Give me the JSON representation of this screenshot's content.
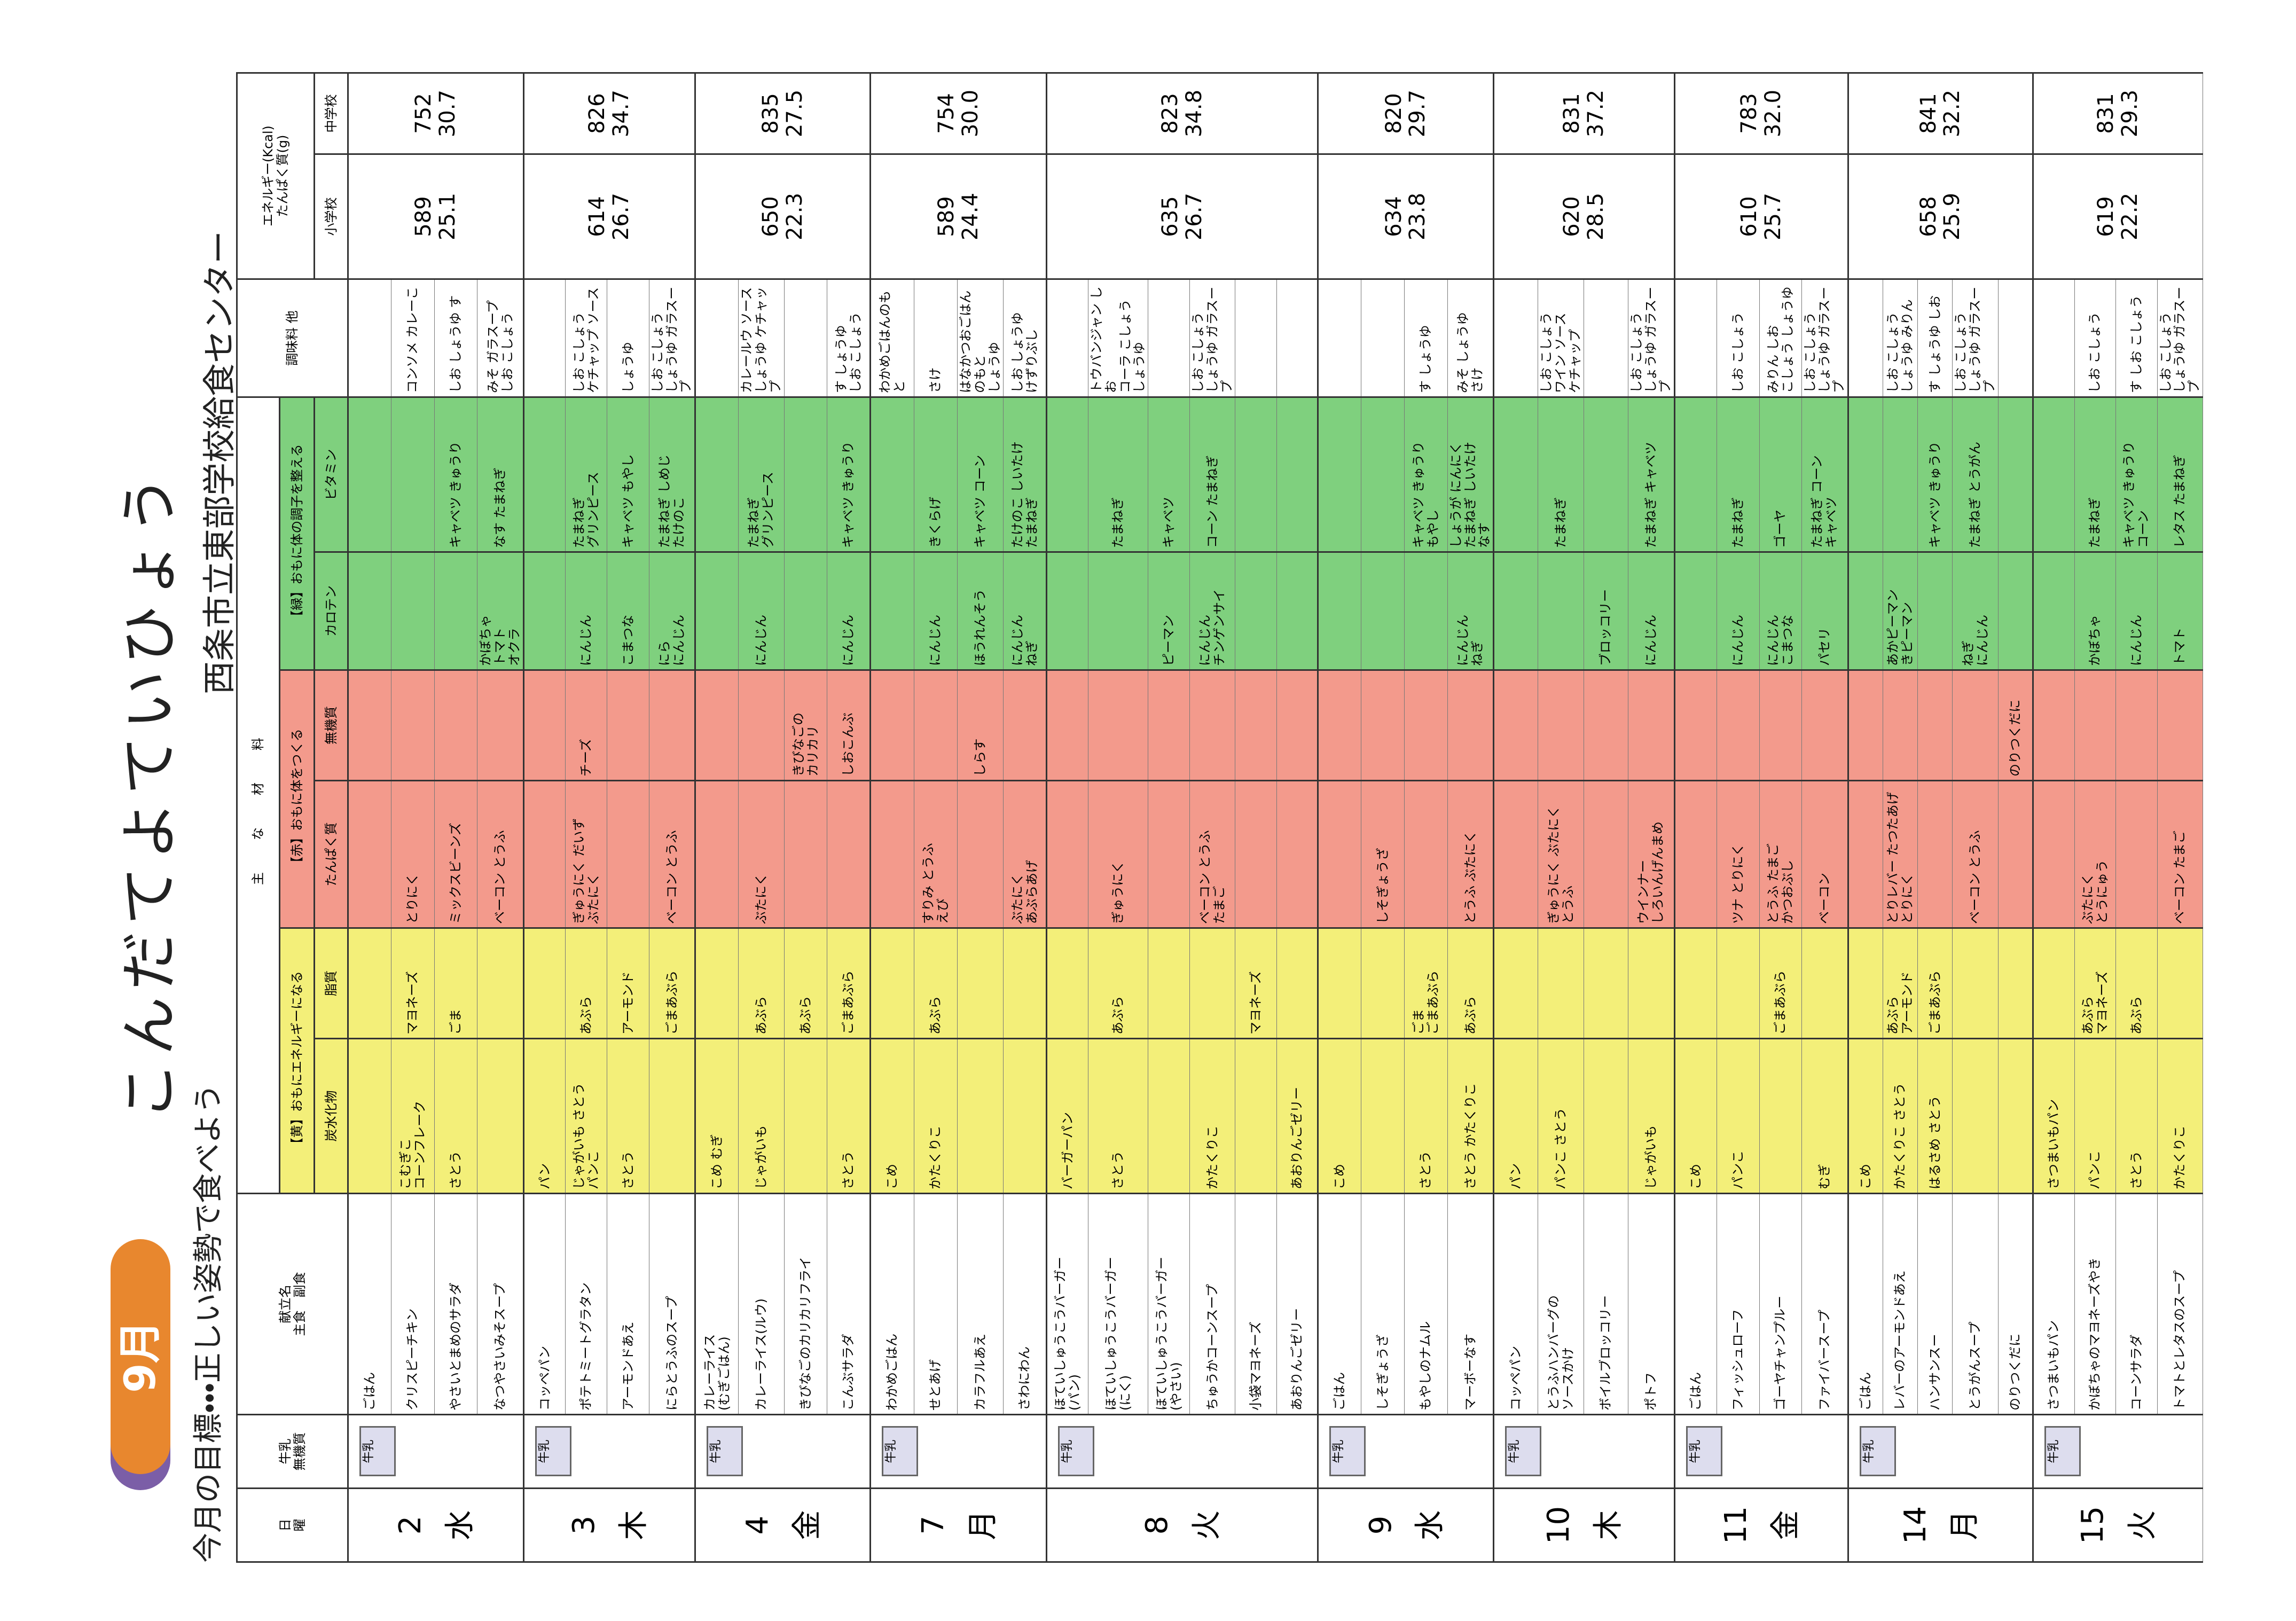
{
  "header": {
    "badge": "9月",
    "title": "こんだてよていひょう",
    "goal": "今月の目標・・・正しい姿勢で食べよう",
    "center": "西条市立東部学校給食センター",
    "date": "日",
    "weekday": "曜",
    "milk": "牛乳",
    "milk_sub": "無機質",
    "menu": "献立名",
    "main": "主食",
    "side": "副食",
    "ingredients": "主な材料",
    "yellow": "【黄】おもにエネルギーになる",
    "red": "【赤】おもに体をつくる",
    "green": "【緑】おもに体の調子を整える",
    "carb": "炭水化物",
    "fat": "脂質",
    "protein": "たんぱく質",
    "mineral": "無機質",
    "carotene": "カロテン",
    "vitamin": "ビタミン",
    "seasoning": "調味料 他",
    "energy": "エネルギー(Kcal)\nたんぱく質(g)",
    "elementary": "小学校",
    "middle": "中学校"
  },
  "milk_icon": "牛乳",
  "days": [
    {
      "date": "2",
      "weekday": "水",
      "elementary": "589\n25.1",
      "middle": "752\n30.7",
      "items": [
        {
          "dish": "ごはん"
        },
        {
          "dish": "クリスピーチキン",
          "carb": "こむぎこ\nコーンフレーク",
          "fat": "マヨネーズ",
          "protein": "とりにく",
          "seasoning": "コンソメ カレーこ"
        },
        {
          "dish": "やさいとまめのサラダ",
          "carb": "さとう",
          "fat": "ごま",
          "protein": "ミックスビーンズ",
          "vitamin": "キャベツ きゅうり",
          "seasoning": "しお しょうゆ す"
        },
        {
          "dish": "なつやさいみそスープ",
          "protein": "ベーコン とうふ",
          "carotene": "かぼちゃ\nトマト\nオクラ",
          "vitamin": "なす たまねぎ",
          "seasoning": "みそ ガラスープ\nしお こしょう"
        }
      ]
    },
    {
      "date": "3",
      "weekday": "木",
      "elementary": "614\n26.7",
      "middle": "826\n34.7",
      "items": [
        {
          "dish": "コッペパン",
          "carb": "パン"
        },
        {
          "dish": "ポテトミートグラタン",
          "carb": "じゃがいも さとう\nパンこ",
          "fat": "あぶら",
          "protein": "ぎゅうにく だいず\nぶたにく",
          "mineral": "チーズ",
          "carotene": "にんじん",
          "vitamin": "たまねぎ\nグリンピース",
          "seasoning": "しお こしょう\nケチャップ ソース"
        },
        {
          "dish": "アーモンドあえ",
          "carb": "さとう",
          "fat": "アーモンド",
          "carotene": "こまつな",
          "vitamin": "キャベツ もやし",
          "seasoning": "しょうゆ"
        },
        {
          "dish": "にらとうふのスープ",
          "fat": "ごまあぶら",
          "protein": "ベーコン とうふ",
          "carotene": "にら\nにんじん",
          "vitamin": "たまねぎ しめじ\nたけのこ",
          "seasoning": "しお こしょう\nしょうゆ ガラスープ"
        }
      ]
    },
    {
      "date": "4",
      "weekday": "金",
      "elementary": "650\n22.3",
      "middle": "835\n27.5",
      "items": [
        {
          "dish": "カレーライス\n(むぎごはん)",
          "carb": "こめ むぎ"
        },
        {
          "dish": "カレーライス(ルウ)",
          "carb": "じゃがいも",
          "fat": "あぶら",
          "protein": "ぶたにく",
          "carotene": "にんじん",
          "vitamin": "たまねぎ\nグリンピース",
          "seasoning": "カレールウ ソース\nしょうゆ ケチャップ"
        },
        {
          "dish": "きびなごのカリカリフライ",
          "fat": "あぶら",
          "mineral": "きびなごの\nカリカリ"
        },
        {
          "dish": "こんぶサラダ",
          "carb": "さとう",
          "fat": "ごまあぶら",
          "mineral": "しおこんぶ",
          "carotene": "にんじん",
          "vitamin": "キャベツ きゅうり",
          "seasoning": "す しょうゆ\nしお こしょう"
        }
      ]
    },
    {
      "date": "7",
      "weekday": "月",
      "elementary": "589\n24.4",
      "middle": "754\n30.0",
      "items": [
        {
          "dish": "わかめごはん",
          "carb": "こめ",
          "seasoning": "わかめごはんのもと"
        },
        {
          "dish": "せとあげ",
          "carb": "かたくりこ",
          "fat": "あぶら",
          "protein": "すりみ とうふ\nえび",
          "carotene": "にんじん",
          "vitamin": "きくらげ",
          "seasoning": "さけ"
        },
        {
          "dish": "カラフルあえ",
          "mineral": "しらす",
          "carotene": "ほうれんそう",
          "vitamin": "キャベツ コーン",
          "seasoning": "はなかつおごはんのもと\nしょうゆ"
        },
        {
          "dish": "さわにわん",
          "protein": "ぶたにく\nあぶらあげ",
          "carotene": "にんじん\nねぎ",
          "vitamin": "たけのこ しいたけ\nたまねぎ",
          "seasoning": "しお しょうゆ\nけずりぶし"
        }
      ]
    },
    {
      "date": "8",
      "weekday": "火",
      "elementary": "635\n26.7",
      "middle": "823\n34.8",
      "items": [
        {
          "dish": "ほていしゅうこうバーガー\n(パン)",
          "carb": "バーガーパン"
        },
        {
          "dish": "ほていしゅうこうバーガー\n(にく)",
          "carb": "さとう",
          "fat": "あぶら",
          "protein": "ぎゅうにく",
          "vitamin": "たまねぎ",
          "seasoning": "トウバンジャン しお\nコーラ こしょう\nしょうゆ"
        },
        {
          "dish": "ほていしゅうこうバーガー\n(やさい)",
          "carotene": "ピーマン",
          "vitamin": "キャベツ"
        },
        {
          "dish": "ちゅうかコーンスープ",
          "carb": "かたくりこ",
          "protein": "ベーコン とうふ\nたまご",
          "carotene": "にんじん\nチンゲンサイ",
          "vitamin": "コーン たまねぎ",
          "seasoning": "しお こしょう\nしょうゆ ガラスープ"
        },
        {
          "dish": "小袋マヨネーズ",
          "fat": "マヨネーズ"
        },
        {
          "dish": "あおりんごゼリー",
          "carb": "あおりんごゼリー"
        }
      ]
    },
    {
      "date": "9",
      "weekday": "水",
      "elementary": "634\n23.8",
      "middle": "820\n29.7",
      "items": [
        {
          "dish": "ごはん",
          "carb": "こめ"
        },
        {
          "dish": "しそぎょうざ",
          "protein": "しそぎょうざ"
        },
        {
          "dish": "もやしのナムル",
          "carb": "さとう",
          "fat": "ごま\nごまあぶら",
          "vitamin": "キャベツ きゅうり\nもやし",
          "seasoning": "す しょうゆ"
        },
        {
          "dish": "マーボーなす",
          "carb": "さとう かたくりこ",
          "fat": "あぶら",
          "protein": "とうふ ぶたにく",
          "carotene": "にんじん\nねぎ",
          "vitamin": "しょうが にんにく\nたまねぎ しいたけ\nなす",
          "seasoning": "みそ しょうゆ\nさけ"
        }
      ]
    },
    {
      "date": "10",
      "weekday": "木",
      "elementary": "620\n28.5",
      "middle": "831\n37.2",
      "items": [
        {
          "dish": "コッペパン",
          "carb": "パン"
        },
        {
          "dish": "とうふハンバーグの\nソースかけ",
          "carb": "パンこ さとう",
          "protein": "ぎゅうにく ぶたにく\nとうふ",
          "vitamin": "たまねぎ",
          "seasoning": "しお こしょう\nワイン ソース\nケチャップ"
        },
        {
          "dish": "ボイルブロッコリー",
          "carotene": "ブロッコリー"
        },
        {
          "dish": "ポトフ",
          "carb": "じゃがいも",
          "protein": "ウインナー\nしろいんげんまめ",
          "carotene": "にんじん",
          "vitamin": "たまねぎ キャベツ",
          "seasoning": "しお こしょう\nしょうゆ ガラスープ"
        }
      ]
    },
    {
      "date": "11",
      "weekday": "金",
      "elementary": "610\n25.7",
      "middle": "783\n32.0",
      "items": [
        {
          "dish": "ごはん",
          "carb": "こめ"
        },
        {
          "dish": "フィッシュローフ",
          "carb": "パンこ",
          "protein": "ツナ とりにく",
          "carotene": "にんじん",
          "vitamin": "たまねぎ",
          "seasoning": "しお こしょう"
        },
        {
          "dish": "ゴーヤチャンプルー",
          "fat": "ごまあぶら",
          "protein": "とうふ たまご\nかつおぶし",
          "carotene": "にんじん\nこまつな",
          "vitamin": "ゴーヤ",
          "seasoning": "みりん しお\nこしょう しょうゆ"
        },
        {
          "dish": "ファイバースープ",
          "carb": "むぎ",
          "protein": "ベーコン",
          "carotene": "パセリ",
          "vitamin": "たまねぎ コーン\nキャベツ",
          "seasoning": "しお こしょう\nしょうゆ ガラスープ"
        }
      ]
    },
    {
      "date": "14",
      "weekday": "月",
      "elementary": "658\n25.9",
      "middle": "841\n32.2",
      "items": [
        {
          "dish": "ごはん",
          "carb": "こめ"
        },
        {
          "dish": "レバーのアーモンドあえ",
          "carb": "かたくりこ さとう",
          "fat": "あぶら\nアーモンド",
          "protein": "とりレバー たつたあげ\nとりにく",
          "carotene": "あかピーマン\nきピーマン",
          "seasoning": "しお こしょう\nしょうゆ みりん"
        },
        {
          "dish": "ハンサンスー",
          "carb": "はるさめ さとう",
          "fat": "ごまあぶら",
          "vitamin": "キャベツ きゅうり",
          "seasoning": "す しょうゆ しお"
        },
        {
          "dish": "とうがんスープ",
          "protein": "ベーコン とうふ",
          "carotene": "ねぎ\nにんじん",
          "vitamin": "たまねぎ とうがん",
          "seasoning": "しお こしょう\nしょうゆ ガラスープ"
        },
        {
          "dish": "のりつくだに",
          "mineral": "のりつくだに"
        }
      ]
    },
    {
      "date": "15",
      "weekday": "火",
      "elementary": "619\n22.2",
      "middle": "831\n29.3",
      "items": [
        {
          "dish": "さつまいもパン",
          "carb": "さつまいもパン"
        },
        {
          "dish": "かぼちゃのマヨネーズやき",
          "carb": "パンこ",
          "fat": "あぶら\nマヨネーズ",
          "protein": "ぶたにく\nとうにゅう",
          "carotene": "かぼちゃ",
          "vitamin": "たまねぎ",
          "seasoning": "しお こしょう"
        },
        {
          "dish": "コーンサラダ",
          "carb": "さとう",
          "fat": "あぶら",
          "carotene": "にんじん",
          "vitamin": "キャベツ きゅうり\nコーン",
          "seasoning": "す しお こしょう"
        },
        {
          "dish": "トマトとレタスのスープ",
          "carb": "かたくりこ",
          "protein": "ベーコン たまご",
          "carotene": "トマト",
          "vitamin": "レタス たまねぎ",
          "seasoning": "しお こしょう\nしょうゆ ガラスープ"
        }
      ]
    }
  ]
}
